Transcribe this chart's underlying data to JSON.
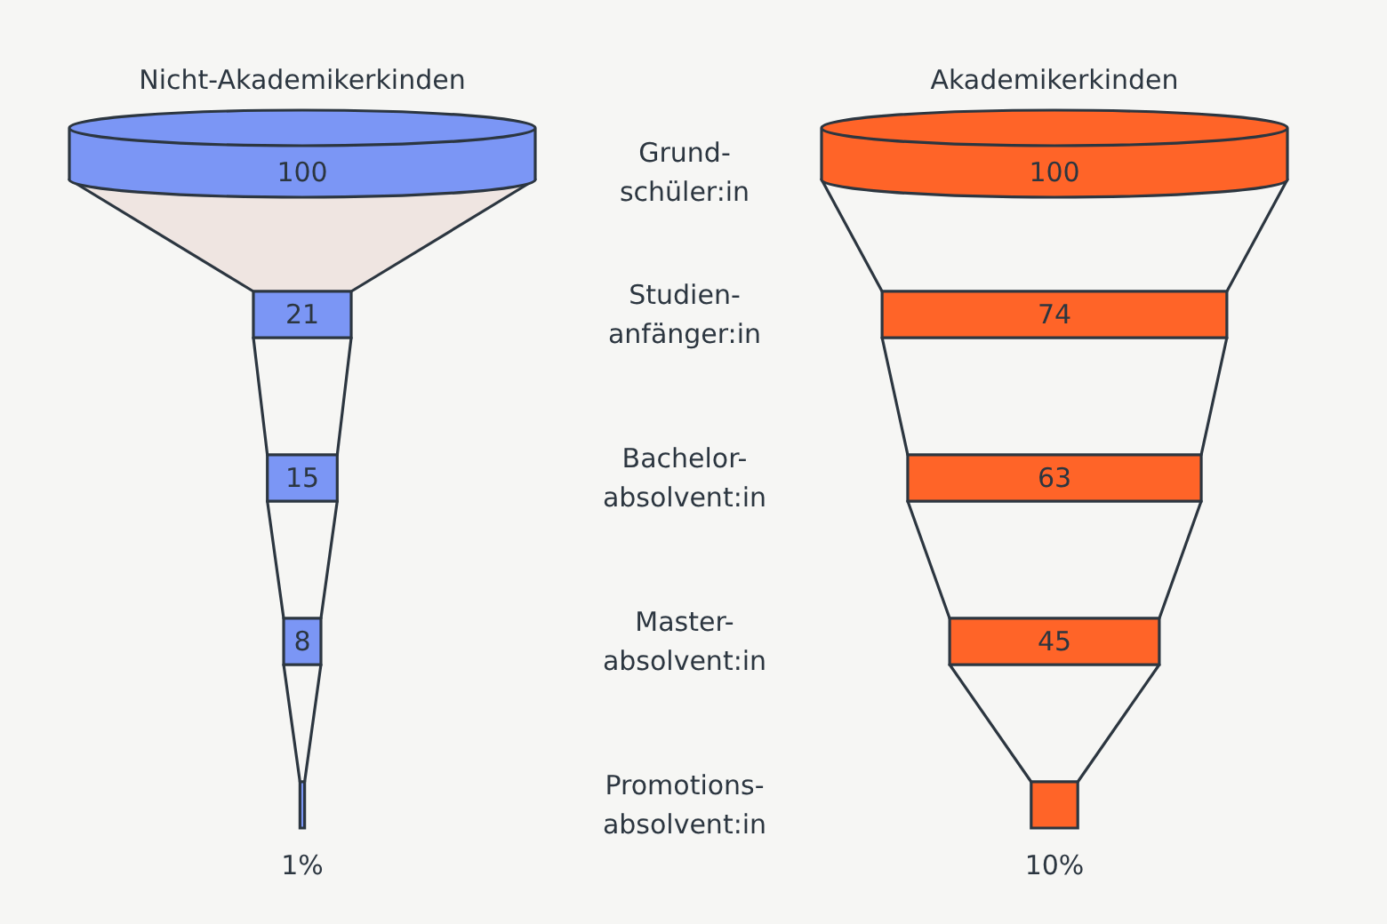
{
  "chart_data": {
    "type": "other",
    "categories": [
      "Grund-\nschüler:in",
      "Studien-\nanfänger:in",
      "Bachelor-\nabsolvent:in",
      "Master-\nabsolvent:in",
      "Promotions-\nabsolvent:in"
    ],
    "series": [
      {
        "name": "Nicht-Akademikerkinden",
        "color": "#7b96f5",
        "values": [
          100,
          21,
          15,
          8,
          1
        ],
        "value_labels": [
          "100",
          "21",
          "15",
          "8",
          "1%"
        ]
      },
      {
        "name": "Akademikerkinden",
        "color": "#ff6428",
        "values": [
          100,
          74,
          63,
          45,
          10
        ],
        "value_labels": [
          "100",
          "74",
          "63",
          "45",
          "10%"
        ]
      }
    ]
  }
}
